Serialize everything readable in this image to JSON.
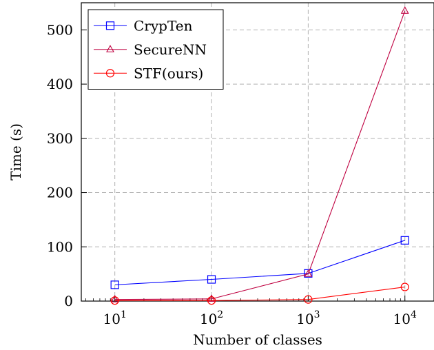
{
  "chart_data": {
    "type": "line",
    "xlabel": "Number of classes",
    "ylabel": "Time (s)",
    "x_scale": "log",
    "x": [
      10,
      100,
      1000,
      10000
    ],
    "xticks": [
      {
        "value": 10,
        "base": "10",
        "exp": "1"
      },
      {
        "value": 100,
        "base": "10",
        "exp": "2"
      },
      {
        "value": 1000,
        "base": "10",
        "exp": "3"
      },
      {
        "value": 10000,
        "base": "10",
        "exp": "4"
      }
    ],
    "yticks": [
      0,
      100,
      200,
      300,
      400,
      500
    ],
    "xlim": [
      4.5,
      20000
    ],
    "ylim": [
      0,
      550
    ],
    "grid": true,
    "legend_position": "top-left",
    "series": [
      {
        "name": "CrypTen",
        "marker": "square",
        "color": "#0000ff",
        "values": [
          30,
          40,
          51,
          112
        ]
      },
      {
        "name": "SecureNN",
        "marker": "triangle",
        "color": "#bf0040",
        "values": [
          3,
          4,
          50,
          535
        ]
      },
      {
        "name": "STF(ours)",
        "marker": "circle",
        "color": "#ff0000",
        "values": [
          1,
          1,
          3,
          26
        ]
      }
    ]
  }
}
